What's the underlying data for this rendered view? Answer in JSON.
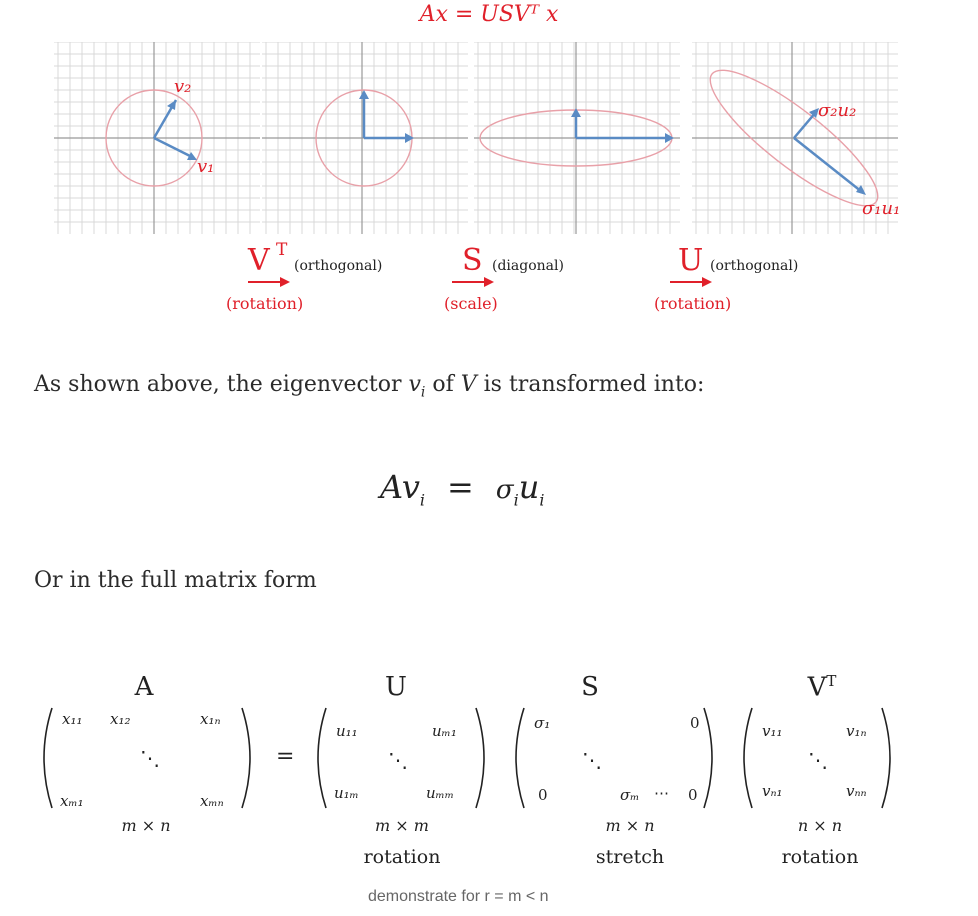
{
  "figure": {
    "title": "Ax = USVᵀ x",
    "vector_labels": {
      "v2": "v₂",
      "v1": "v₁",
      "s2u2": "σ₂u₂",
      "s1u1": "σ₁u₁"
    },
    "operators": [
      {
        "letter": "V",
        "sup": "T",
        "note": "(orthogonal)",
        "sub": "(rotation)"
      },
      {
        "letter": "S",
        "sup": "",
        "note": "(diagonal)",
        "sub": "(scale)"
      },
      {
        "letter": "U",
        "sup": "",
        "note": "(orthogonal)",
        "sub": "(rotation)"
      }
    ],
    "colors": {
      "accent": "#e0202a",
      "vector": "#5a8bc4",
      "ellipse": "#e8a0a8",
      "grid": "#d6d6d6"
    }
  },
  "text": {
    "shown_above_pre": "As shown above, the eigenvector ",
    "shown_above_var": "v",
    "shown_above_sub": "i",
    "shown_above_mid": " of ",
    "shown_above_V": "V",
    "shown_above_post": " is transformed into:",
    "equation_lhs": "Av",
    "equation_lhs_sub": "i",
    "equation_eq": "=",
    "equation_rhs_sigma": "σ",
    "equation_rhs_sub1": "i",
    "equation_rhs_u": "u",
    "equation_rhs_sub2": "i",
    "full_matrix": "Or in the full matrix form"
  },
  "matrices": {
    "A": {
      "label": "A",
      "cells": {
        "tl": "x₁₁",
        "tl2": "x₁₂",
        "tr": "x₁ₙ",
        "dots": "⋱",
        "bl": "xₘ₁",
        "br": "xₘₙ"
      },
      "dim": "m × n"
    },
    "equals": "=",
    "U": {
      "label": "U",
      "cells": {
        "tl": "u₁₁",
        "tr": "uₘ₁",
        "dots": "⋱",
        "bl": "u₁ₘ",
        "br": "uₘₘ"
      },
      "dim": "m × m",
      "word": "rotation"
    },
    "S": {
      "label": "S",
      "cells": {
        "tl": "σ₁",
        "tr": "0",
        "dots": "⋱",
        "bl": "0",
        "bm": "σₘ",
        "bdots": "⋯",
        "br": "0"
      },
      "dim": "m × n",
      "word": "stretch"
    },
    "VT": {
      "label": "V",
      "label_sup": "T",
      "cells": {
        "tl": "v₁₁",
        "tr": "v₁ₙ",
        "dots": "⋱",
        "bl": "vₙ₁",
        "br": "vₙₙ"
      },
      "dim": "n × n",
      "word": "rotation"
    }
  },
  "caption": "demonstrate for r = m < n"
}
